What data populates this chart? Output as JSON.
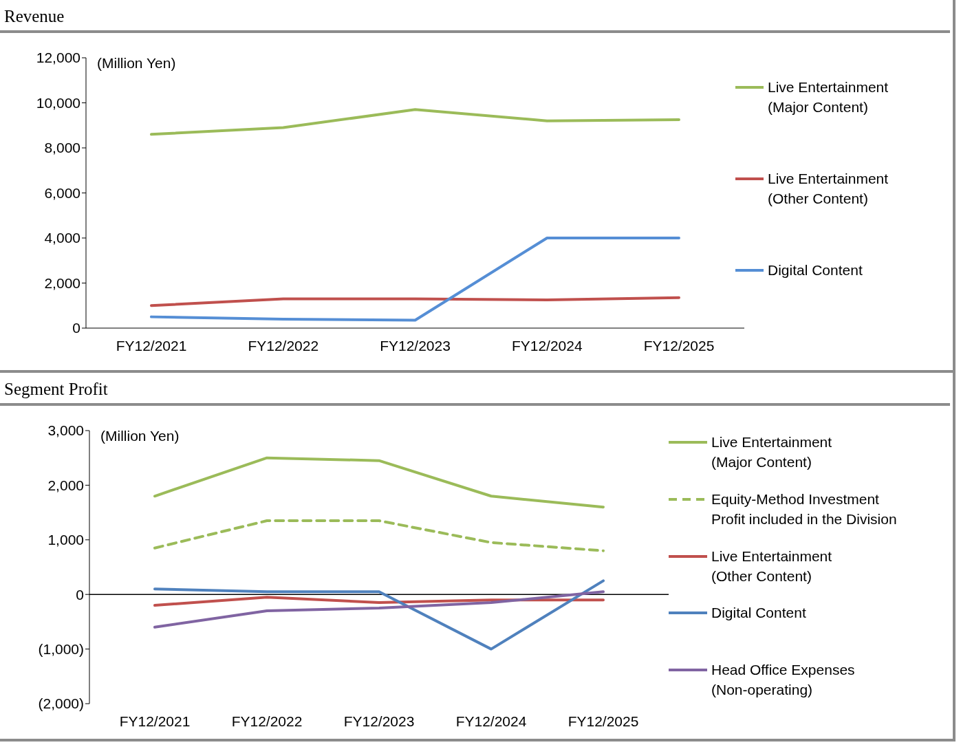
{
  "chart_data": [
    {
      "type": "line",
      "title": "Revenue",
      "ylabel": "(Million Yen)",
      "categories": [
        "FY12/2021",
        "FY12/2022",
        "FY12/2023",
        "FY12/2024",
        "FY12/2025"
      ],
      "ylim": [
        0,
        12000
      ],
      "yticks": [
        0,
        {
          "value": 2000,
          "label": "2,000"
        },
        {
          "value": 4000,
          "label": "4,000"
        },
        {
          "value": 6000,
          "label": "6,000"
        },
        {
          "value": 8000,
          "label": "8,000"
        },
        {
          "value": 10000,
          "label": "10,000"
        },
        {
          "value": 12000,
          "label": "12,000"
        }
      ],
      "legend": "right",
      "grid": false,
      "series": [
        {
          "name": "Live Entertainment\n(Major Content)",
          "color": "#9bbb59",
          "values": [
            8600,
            8900,
            9700,
            9200,
            9250
          ]
        },
        {
          "name": "Live Entertainment\n(Other Content)",
          "color": "#c0504d",
          "values": [
            1000,
            1300,
            1300,
            1250,
            1350
          ]
        },
        {
          "name": "Digital Content",
          "color": "#558ed5",
          "values": [
            500,
            400,
            350,
            4000,
            4000
          ]
        }
      ]
    },
    {
      "type": "line",
      "title": "Segment Profit",
      "ylabel": "(Million Yen)",
      "categories": [
        "FY12/2021",
        "FY12/2022",
        "FY12/2023",
        "FY12/2024",
        "FY12/2025"
      ],
      "ylim": [
        -2000,
        3000
      ],
      "yticks": [
        {
          "value": -2000,
          "label": "(2,000)"
        },
        {
          "value": -1000,
          "label": "(1,000)"
        },
        0,
        {
          "value": 1000,
          "label": "1,000"
        },
        {
          "value": 2000,
          "label": "2,000"
        },
        {
          "value": 3000,
          "label": "3,000"
        }
      ],
      "legend": "right",
      "grid": false,
      "ref_lines": [
        {
          "axis": "y",
          "value": 0,
          "color": "#000000"
        }
      ],
      "series": [
        {
          "name": "Live Entertainment\n(Major Content)",
          "color": "#9bbb59",
          "values": [
            1800,
            2500,
            2450,
            1800,
            1600
          ]
        },
        {
          "name": "Equity-Method Investment\nProfit included in the Division",
          "color": "#9bbb59",
          "line_style": "dashed",
          "values": [
            850,
            1350,
            1350,
            950,
            800
          ]
        },
        {
          "name": "Live Entertainment\n(Other Content)",
          "color": "#c0504d",
          "values": [
            -200,
            -50,
            -150,
            -100,
            -100
          ]
        },
        {
          "name": "Digital Content",
          "color": "#4f81bd",
          "values": [
            100,
            50,
            50,
            -1000,
            250
          ]
        },
        {
          "name": "Head Office Expenses\n(Non-operating)",
          "color": "#8064a2",
          "values": [
            -600,
            -300,
            -250,
            -150,
            50
          ]
        }
      ]
    }
  ]
}
